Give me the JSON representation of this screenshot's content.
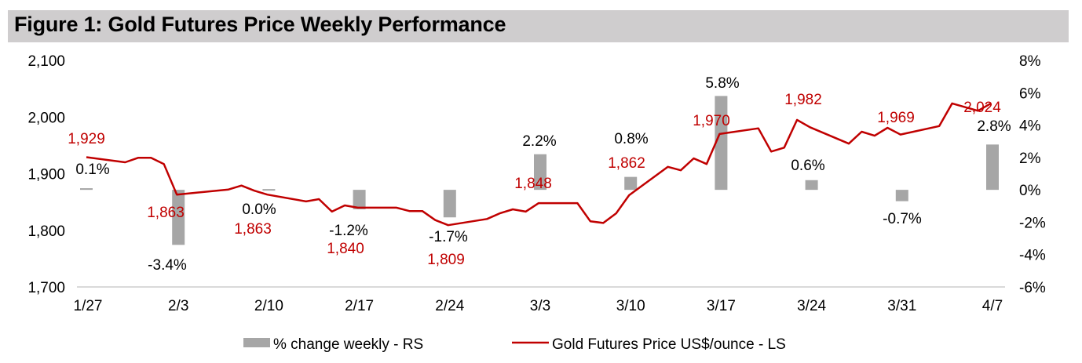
{
  "header": {
    "title": "Figure 1: Gold Futures Price Weekly Performance"
  },
  "chart_data": {
    "type": "bar+line",
    "title": "Figure 1: Gold Futures Price Weekly Performance",
    "xlabel": "",
    "ylabel_left": "Gold Futures Price US$/ounce",
    "ylabel_right": "% change weekly",
    "x_tick_labels": [
      "1/27",
      "2/3",
      "2/10",
      "2/17",
      "2/24",
      "3/3",
      "3/10",
      "3/17",
      "3/24",
      "3/31",
      "4/7"
    ],
    "left_axis": {
      "ylim": [
        1700,
        2100
      ],
      "tick_values": [
        1700,
        1800,
        1900,
        2000,
        2100
      ],
      "tick_labels": [
        "1,700",
        "1,800",
        "1,900",
        "2,000",
        "2,100"
      ]
    },
    "right_axis": {
      "ylim": [
        -6,
        8
      ],
      "tick_values": [
        -6,
        -4,
        -2,
        0,
        2,
        4,
        6,
        8
      ],
      "tick_labels": [
        "-6%",
        "-4%",
        "-2%",
        "0%",
        "2%",
        "4%",
        "6%",
        "8%"
      ]
    },
    "grid": false,
    "legend_position": "bottom-center",
    "series": [
      {
        "name": "% change weekly - RS",
        "type": "bar",
        "axis": "right",
        "color": "#a6a6a6",
        "categories": [
          "1/27",
          "2/3",
          "2/10",
          "2/17",
          "2/24",
          "3/3",
          "3/10",
          "3/17",
          "3/24",
          "3/31",
          "4/7"
        ],
        "values": [
          0.1,
          -3.4,
          0.0,
          -1.2,
          -1.7,
          2.2,
          0.8,
          5.8,
          0.6,
          -0.7,
          2.8
        ],
        "labels": [
          "0.1%",
          "-3.4%",
          "0.0%",
          "-1.2%",
          "-1.7%",
          "2.2%",
          "0.8%",
          "5.8%",
          "0.6%",
          "-0.7%",
          "2.8%"
        ]
      },
      {
        "name": "Gold Futures Price US$/ounce - LS",
        "type": "line",
        "axis": "left",
        "color": "#c00000",
        "x_day_offsets_from_1_27": [
          0,
          3,
          4,
          5,
          6,
          7,
          11,
          12,
          13,
          14,
          17,
          18,
          19,
          20,
          21,
          24,
          25,
          26,
          27,
          28,
          31,
          32,
          33,
          34,
          35,
          38,
          39,
          40,
          41,
          42,
          45,
          46,
          47,
          48,
          49,
          52,
          53,
          54,
          55,
          56,
          59,
          60,
          61,
          62,
          63,
          66,
          67,
          69,
          70
        ],
        "values": [
          1929,
          1920,
          1928,
          1928,
          1917,
          1863,
          1872,
          1879,
          1870,
          1863,
          1851,
          1855,
          1833,
          1844,
          1840,
          1840,
          1834,
          1834,
          1818,
          1809,
          1820,
          1830,
          1837,
          1833,
          1848,
          1848,
          1816,
          1813,
          1830,
          1862,
          1912,
          1906,
          1927,
          1917,
          1970,
          1980,
          1939,
          1946,
          1995,
          1982,
          1953,
          1974,
          1967,
          1981,
          1969,
          1984,
          2024,
          2011,
          2024
        ],
        "weekly_labels": [
          "1,929",
          "1,863",
          "1,863",
          "1,840",
          "1,809",
          "1,848",
          "1,862",
          "1,970",
          "1,982",
          "1,969",
          "2,024"
        ]
      }
    ],
    "legend": [
      {
        "label": "% change weekly - RS",
        "swatch": "bar",
        "color": "#a6a6a6"
      },
      {
        "label": "Gold Futures Price US$/ounce - LS",
        "swatch": "line",
        "color": "#c00000"
      }
    ]
  }
}
